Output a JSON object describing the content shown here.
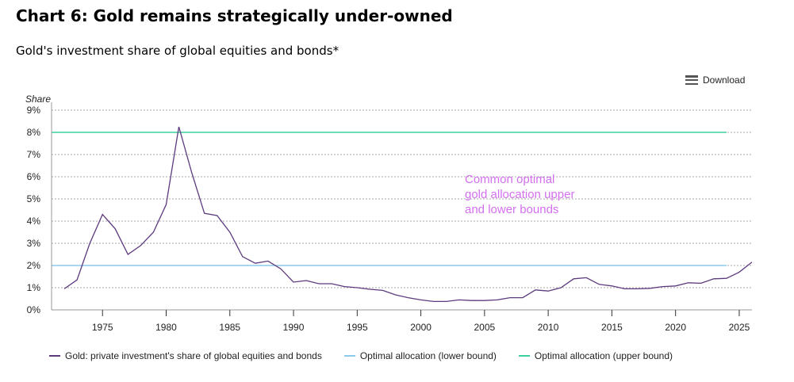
{
  "title": "Chart 6: Gold remains strategically under-owned",
  "subtitle": "Gold's investment share of global equities and bonds*",
  "download_label": "Download",
  "chart_data": {
    "type": "line",
    "ylabel": "Share",
    "ylim": [
      0,
      9
    ],
    "xlim": [
      1971,
      2026
    ],
    "yticks": [
      "0%",
      "1%",
      "2%",
      "3%",
      "4%",
      "5%",
      "6%",
      "7%",
      "8%",
      "9%"
    ],
    "xticks": [
      1975,
      1980,
      1985,
      1990,
      1995,
      2000,
      2005,
      2010,
      2015,
      2020,
      2025
    ],
    "grid": true,
    "annotation": [
      "Common optimal",
      "gold allocation upper",
      "and lower bounds"
    ],
    "annotation_color": "#d46ff0",
    "series": [
      {
        "name": "Gold: private investment's share of global equities and bonds",
        "color": "#5c3a7e",
        "x": [
          1972,
          1973,
          1974,
          1975,
          1976,
          1977,
          1978,
          1979,
          1980,
          1981,
          1982,
          1983,
          1984,
          1985,
          1986,
          1987,
          1988,
          1989,
          1990,
          1991,
          1992,
          1993,
          1994,
          1995,
          1996,
          1997,
          1998,
          1999,
          2000,
          2001,
          2002,
          2003,
          2004,
          2005,
          2006,
          2007,
          2008,
          2009,
          2010,
          2011,
          2012,
          2013,
          2014,
          2015,
          2016,
          2017,
          2018,
          2019,
          2020,
          2021,
          2022,
          2023,
          2024,
          2025,
          2026
        ],
        "values": [
          0.95,
          1.35,
          3.0,
          4.3,
          3.65,
          2.5,
          2.9,
          3.5,
          4.75,
          8.25,
          6.2,
          4.35,
          4.25,
          3.5,
          2.4,
          2.1,
          2.2,
          1.85,
          1.25,
          1.32,
          1.18,
          1.18,
          1.05,
          1.0,
          0.93,
          0.88,
          0.68,
          0.55,
          0.45,
          0.38,
          0.38,
          0.45,
          0.42,
          0.42,
          0.45,
          0.55,
          0.55,
          0.9,
          0.85,
          1.0,
          1.4,
          1.45,
          1.15,
          1.08,
          0.95,
          0.95,
          0.97,
          1.05,
          1.08,
          1.22,
          1.2,
          1.4,
          1.42,
          1.7,
          2.15
        ]
      },
      {
        "name": "Optimal allocation (lower bound)",
        "color": "#8ccaf0",
        "x": [
          1971,
          2024
        ],
        "values": [
          2,
          2
        ]
      },
      {
        "name": "Optimal allocation (upper bound)",
        "color": "#3ccf9e",
        "x": [
          1971,
          2024
        ],
        "values": [
          8,
          8
        ]
      }
    ]
  }
}
